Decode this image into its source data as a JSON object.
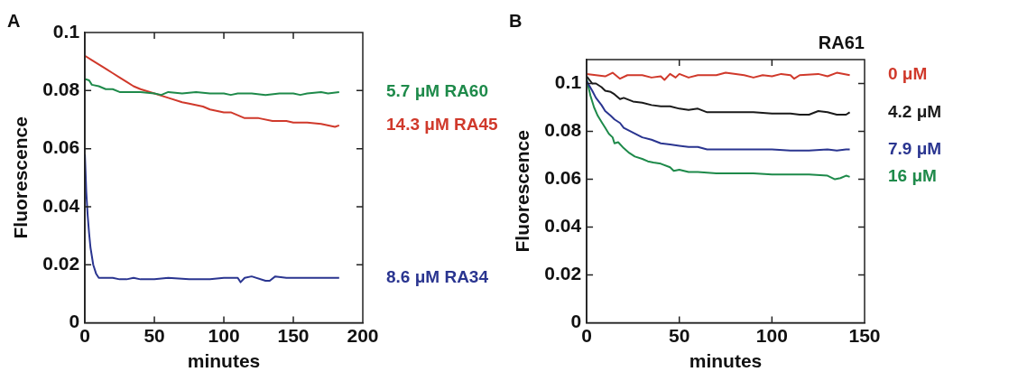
{
  "chart_data": [
    {
      "type": "line",
      "title": "A",
      "xlabel": "minutes",
      "ylabel": "Fluorescence",
      "xlim": [
        0,
        200
      ],
      "xticks": [
        0,
        50,
        100,
        150,
        200
      ],
      "ylim": [
        0,
        0.1
      ],
      "yticks": [
        0,
        0.02,
        0.04,
        0.06,
        0.08,
        0.1
      ],
      "grid": false,
      "legend": false,
      "marker": "none",
      "line_style": "solid",
      "series": [
        {
          "name": "5.7 μM RA60",
          "color": "#1e8a4a",
          "x": [
            0,
            3,
            5,
            10,
            15,
            20,
            25,
            30,
            40,
            50,
            55,
            60,
            70,
            80,
            90,
            100,
            105,
            110,
            120,
            130,
            140,
            150,
            155,
            160,
            170,
            175,
            183
          ],
          "values": [
            0.084,
            0.0835,
            0.082,
            0.0815,
            0.0805,
            0.0805,
            0.0795,
            0.0795,
            0.0795,
            0.079,
            0.0785,
            0.0795,
            0.079,
            0.0795,
            0.079,
            0.079,
            0.0785,
            0.079,
            0.079,
            0.0785,
            0.079,
            0.079,
            0.0785,
            0.079,
            0.0795,
            0.079,
            0.0795
          ]
        },
        {
          "name": "14.3 μM RA45",
          "color": "#d0392b",
          "x": [
            0,
            5,
            10,
            15,
            20,
            25,
            30,
            35,
            40,
            50,
            60,
            70,
            75,
            85,
            90,
            100,
            105,
            110,
            115,
            125,
            135,
            145,
            150,
            160,
            170,
            180,
            183
          ],
          "values": [
            0.092,
            0.0905,
            0.089,
            0.0875,
            0.086,
            0.0845,
            0.083,
            0.0815,
            0.0805,
            0.079,
            0.0775,
            0.076,
            0.0755,
            0.0745,
            0.0735,
            0.0725,
            0.0725,
            0.0715,
            0.0705,
            0.0705,
            0.0695,
            0.0695,
            0.069,
            0.069,
            0.0685,
            0.0675,
            0.068
          ]
        },
        {
          "name": "8.6 μM RA34",
          "color": "#2a3590",
          "x": [
            0,
            1,
            2,
            3,
            4,
            6,
            8,
            10,
            15,
            20,
            25,
            30,
            35,
            40,
            50,
            60,
            75,
            90,
            100,
            110,
            112,
            115,
            120,
            130,
            133,
            137,
            145,
            150,
            160,
            170,
            183
          ],
          "values": [
            0.058,
            0.045,
            0.037,
            0.031,
            0.026,
            0.02,
            0.017,
            0.0155,
            0.0155,
            0.0155,
            0.015,
            0.015,
            0.0155,
            0.015,
            0.015,
            0.0155,
            0.015,
            0.015,
            0.0155,
            0.0155,
            0.014,
            0.0155,
            0.016,
            0.0145,
            0.0145,
            0.016,
            0.0155,
            0.0155,
            0.0155,
            0.0155,
            0.0155
          ]
        }
      ]
    },
    {
      "type": "line",
      "title": "B",
      "subtitle": "RA61",
      "xlabel": "minutes",
      "ylabel": "Fluorescence",
      "xlim": [
        0,
        150
      ],
      "xticks": [
        0,
        50,
        100,
        150
      ],
      "ylim": [
        0,
        0.11
      ],
      "yticks": [
        0,
        0.02,
        0.04,
        0.06,
        0.08,
        0.1
      ],
      "grid": false,
      "legend": false,
      "marker": "none",
      "line_style": "solid",
      "series": [
        {
          "name": "0 μM",
          "color": "#d0392b",
          "x": [
            0,
            5,
            10,
            14,
            18,
            22,
            30,
            35,
            40,
            42,
            45,
            48,
            50,
            55,
            60,
            70,
            75,
            85,
            90,
            95,
            100,
            105,
            110,
            112,
            115,
            125,
            130,
            135,
            142
          ],
          "values": [
            0.104,
            0.1035,
            0.103,
            0.1045,
            0.102,
            0.1035,
            0.1035,
            0.1025,
            0.103,
            0.1015,
            0.104,
            0.1025,
            0.104,
            0.1025,
            0.1035,
            0.1035,
            0.1045,
            0.1035,
            0.1025,
            0.1035,
            0.103,
            0.104,
            0.1035,
            0.102,
            0.1035,
            0.104,
            0.103,
            0.1045,
            0.1035
          ]
        },
        {
          "name": "4.2 μM",
          "color": "#1a1a1a",
          "x": [
            0,
            3,
            5,
            8,
            10,
            13,
            15,
            18,
            20,
            25,
            30,
            35,
            40,
            45,
            50,
            55,
            60,
            65,
            70,
            80,
            90,
            100,
            110,
            115,
            120,
            125,
            130,
            135,
            140,
            142
          ],
          "values": [
            0.103,
            0.1,
            0.1,
            0.0985,
            0.097,
            0.0965,
            0.0955,
            0.0935,
            0.094,
            0.0925,
            0.092,
            0.091,
            0.0905,
            0.0905,
            0.0895,
            0.089,
            0.0895,
            0.088,
            0.088,
            0.088,
            0.088,
            0.0875,
            0.0875,
            0.087,
            0.087,
            0.0885,
            0.088,
            0.087,
            0.087,
            0.088
          ]
        },
        {
          "name": "7.9 μM",
          "color": "#2a3590",
          "x": [
            0,
            3,
            5,
            8,
            10,
            13,
            15,
            18,
            20,
            25,
            30,
            35,
            40,
            45,
            50,
            55,
            60,
            65,
            70,
            80,
            90,
            100,
            110,
            120,
            130,
            135,
            140,
            142
          ],
          "values": [
            0.101,
            0.097,
            0.094,
            0.091,
            0.0885,
            0.0865,
            0.085,
            0.0835,
            0.0815,
            0.0795,
            0.0775,
            0.0765,
            0.075,
            0.0745,
            0.074,
            0.0735,
            0.0735,
            0.0725,
            0.0725,
            0.0725,
            0.0725,
            0.0725,
            0.072,
            0.072,
            0.0725,
            0.072,
            0.0725,
            0.0725
          ]
        },
        {
          "name": "16 μM",
          "color": "#1e8a4a",
          "x": [
            0,
            2,
            4,
            6,
            8,
            10,
            12,
            14,
            15,
            17,
            20,
            23,
            26,
            30,
            33,
            36,
            40,
            45,
            47,
            50,
            55,
            60,
            70,
            80,
            90,
            100,
            110,
            120,
            130,
            134,
            137,
            140,
            142
          ],
          "values": [
            0.102,
            0.095,
            0.09,
            0.0865,
            0.084,
            0.0815,
            0.079,
            0.0775,
            0.075,
            0.0755,
            0.073,
            0.071,
            0.0695,
            0.0685,
            0.0675,
            0.067,
            0.0665,
            0.065,
            0.0635,
            0.064,
            0.063,
            0.063,
            0.0625,
            0.0625,
            0.0625,
            0.062,
            0.062,
            0.062,
            0.0615,
            0.06,
            0.0605,
            0.0615,
            0.061
          ]
        }
      ]
    }
  ]
}
